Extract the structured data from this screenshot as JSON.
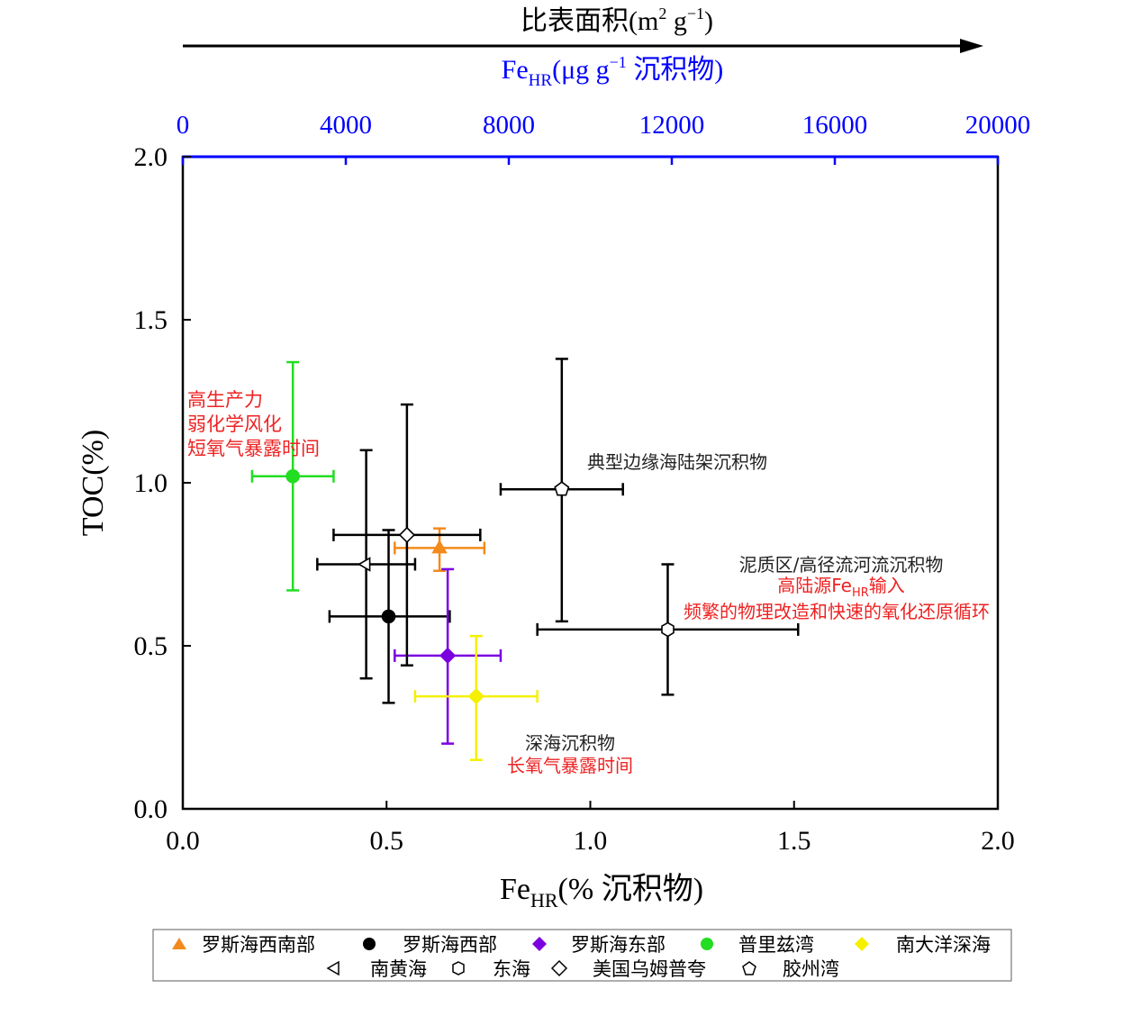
{
  "top_axis": {
    "arrow_label": "比表面积(m",
    "arrow_label_sup": "2",
    "arrow_label_mid": " g",
    "arrow_label_sup2": "−1",
    "arrow_label_end": ")",
    "label_main": "Fe",
    "label_sub": "HR",
    "label_rest": "(μg g",
    "label_sup": "−1",
    "label_end": " 沉积物)",
    "color": "#0000ff",
    "ticks": [
      "0",
      "4000",
      "8000",
      "12000",
      "16000",
      "20000"
    ]
  },
  "chart_data": {
    "type": "scatter",
    "xlabel_main": "Fe",
    "xlabel_sub": "HR",
    "xlabel_rest": "(% 沉积物)",
    "ylabel": "TOC(%)",
    "xlim": [
      0,
      2.0
    ],
    "ylim": [
      0,
      2.0
    ],
    "x_ticks": [
      "0.0",
      "0.5",
      "1.0",
      "1.5",
      "2.0"
    ],
    "y_ticks": [
      "0.0",
      "0.5",
      "1.0",
      "1.5",
      "2.0"
    ],
    "series": [
      {
        "name": "罗斯海西南部",
        "marker": "triangle",
        "color": "#f28a1c",
        "filled": true,
        "x": 0.63,
        "y": 0.8,
        "xerr": [
          0.52,
          0.74
        ],
        "yerr": [
          0.73,
          0.86
        ]
      },
      {
        "name": "罗斯海西部",
        "marker": "circle",
        "color": "#000000",
        "filled": true,
        "x": 0.505,
        "y": 0.59,
        "xerr": [
          0.36,
          0.655
        ],
        "yerr": [
          0.325,
          0.855
        ]
      },
      {
        "name": "罗斯海东部",
        "marker": "diamond",
        "color": "#7b00e0",
        "filled": true,
        "x": 0.65,
        "y": 0.47,
        "xerr": [
          0.52,
          0.78
        ],
        "yerr": [
          0.2,
          0.735
        ]
      },
      {
        "name": "普里兹湾",
        "marker": "circle",
        "color": "#22dd22",
        "filled": true,
        "x": 0.27,
        "y": 1.02,
        "xerr": [
          0.17,
          0.37
        ],
        "yerr": [
          0.67,
          1.37
        ]
      },
      {
        "name": "南大洋深海",
        "marker": "diamond",
        "color": "#f5f000",
        "filled": true,
        "x": 0.72,
        "y": 0.345,
        "xerr": [
          0.57,
          0.87
        ],
        "yerr": [
          0.15,
          0.53
        ]
      },
      {
        "name": "南黄海",
        "marker": "triangle-left",
        "color": "#000000",
        "filled": false,
        "x": 0.45,
        "y": 0.75,
        "xerr": [
          0.33,
          0.57
        ],
        "yerr": [
          0.4,
          1.1
        ]
      },
      {
        "name": "东海",
        "marker": "hexagon",
        "color": "#000000",
        "filled": false,
        "x": 1.19,
        "y": 0.55,
        "xerr": [
          0.87,
          1.51
        ],
        "yerr": [
          0.35,
          0.75
        ]
      },
      {
        "name": "美国乌姆普夸",
        "marker": "diamond",
        "color": "#000000",
        "filled": false,
        "x": 0.55,
        "y": 0.84,
        "xerr": [
          0.37,
          0.73
        ],
        "yerr": [
          0.44,
          1.24
        ]
      },
      {
        "name": "胶州湾",
        "marker": "pentagon",
        "color": "#000000",
        "filled": false,
        "x": 0.93,
        "y": 0.98,
        "xerr": [
          0.78,
          1.08
        ],
        "yerr": [
          0.575,
          1.38
        ]
      }
    ],
    "annotations": {
      "prydz": [
        "高生产力",
        "弱化学风化",
        "短氧气暴露时间"
      ],
      "shelf": "典型边缘海陆架沉积物",
      "mud_title": "泥质区/高径流河流沉积物",
      "mud_line2_main": "高陆源Fe",
      "mud_line2_sub": "HR",
      "mud_line2_end": "输入",
      "mud_line3": "频繁的物理改造和快速的氧化还原循环",
      "deep_title": "深海沉积物",
      "deep_line2": "长氧气暴露时间"
    },
    "colors": {
      "annotation_red": "#ee2222",
      "annotation_black": "#222222"
    }
  },
  "legend": {
    "row1": [
      "罗斯海西南部",
      "罗斯海西部",
      "罗斯海东部",
      "普里兹湾",
      "南大洋深海"
    ],
    "row2": [
      "南黄海",
      "东海",
      "美国乌姆普夸",
      "胶州湾"
    ]
  }
}
